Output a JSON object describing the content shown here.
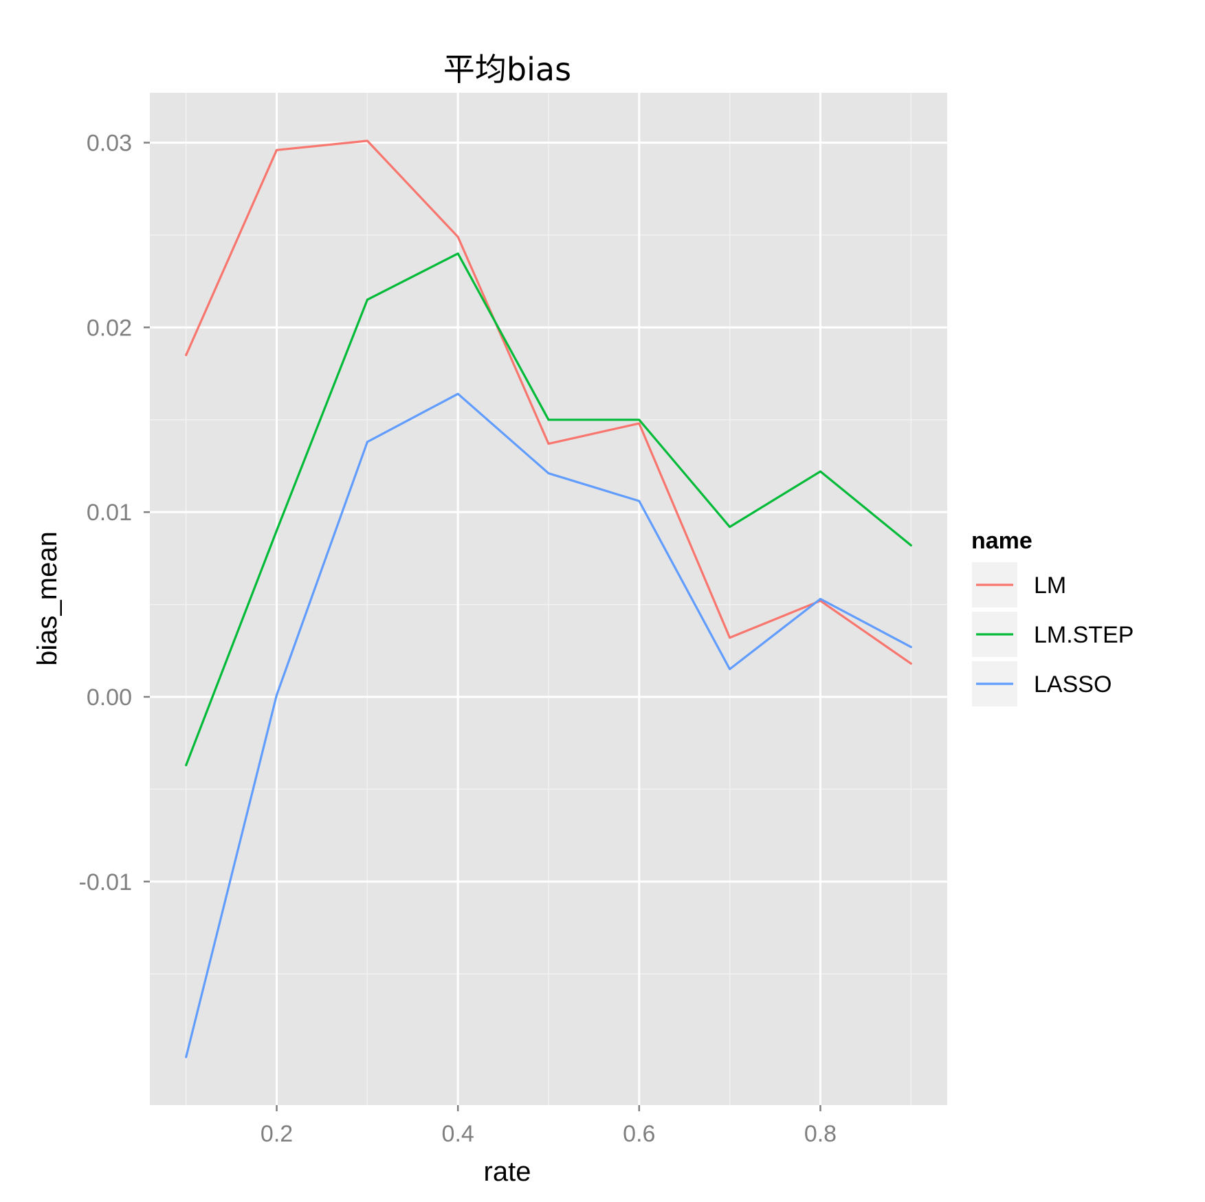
{
  "chart_data": {
    "type": "line",
    "title": "平均bias",
    "xlabel": "rate",
    "ylabel": "bias_mean",
    "x": [
      0.1,
      0.2,
      0.3,
      0.4,
      0.5,
      0.6,
      0.7,
      0.8,
      0.9
    ],
    "xlim": [
      0.06,
      0.94
    ],
    "ylim": [
      -0.0221,
      0.0327
    ],
    "x_ticks": [
      0.2,
      0.4,
      0.6,
      0.8
    ],
    "x_tick_labels": [
      "0.2",
      "0.4",
      "0.6",
      "0.8"
    ],
    "y_ticks": [
      -0.01,
      0.0,
      0.01,
      0.02,
      0.03
    ],
    "y_tick_labels": [
      "-0.01",
      "0.00",
      "0.01",
      "0.02",
      "0.03"
    ],
    "grid": true,
    "legend_title": "name",
    "legend_position": "right",
    "series": [
      {
        "name": "LM",
        "color": "#F8766D",
        "values": [
          0.0185,
          0.0296,
          0.0301,
          0.0249,
          0.0137,
          0.0148,
          0.0032,
          0.0052,
          0.0018
        ]
      },
      {
        "name": "LM.STEP",
        "color": "#00BA38",
        "values": [
          -0.0037,
          0.009,
          0.0215,
          0.024,
          0.015,
          0.015,
          0.0092,
          0.0122,
          0.0082
        ]
      },
      {
        "name": "LASSO",
        "color": "#619CFF",
        "values": [
          -0.0195,
          0.0001,
          0.0138,
          0.0164,
          0.0121,
          0.0106,
          0.0015,
          0.0053,
          0.0027
        ]
      }
    ]
  }
}
